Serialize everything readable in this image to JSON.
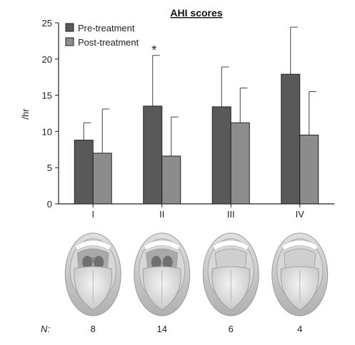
{
  "chart_data": {
    "type": "bar",
    "title": "AHI scores",
    "ylabel": "/hr",
    "xlabel": "",
    "ylim": [
      0,
      25
    ],
    "yticks": [
      0,
      5,
      10,
      15,
      20,
      25
    ],
    "categories": [
      "I",
      "II",
      "III",
      "IV"
    ],
    "series": [
      {
        "name": "Pre-treatment",
        "color": "#595959",
        "values": [
          8.8,
          13.5,
          13.4,
          17.9
        ],
        "error_upper": [
          11.2,
          20.5,
          18.9,
          24.4
        ]
      },
      {
        "name": "Post-treatment",
        "color": "#8c8c8c",
        "values": [
          7.0,
          6.6,
          11.2,
          9.5
        ],
        "error_upper": [
          13.1,
          12.0,
          16.0,
          15.5
        ]
      }
    ],
    "annotations": [
      {
        "text": "*",
        "category": "II",
        "series": 0
      }
    ],
    "legend_position": "top-left",
    "n_label": "N:",
    "n_values": [
      "8",
      "14",
      "6",
      "4"
    ]
  }
}
